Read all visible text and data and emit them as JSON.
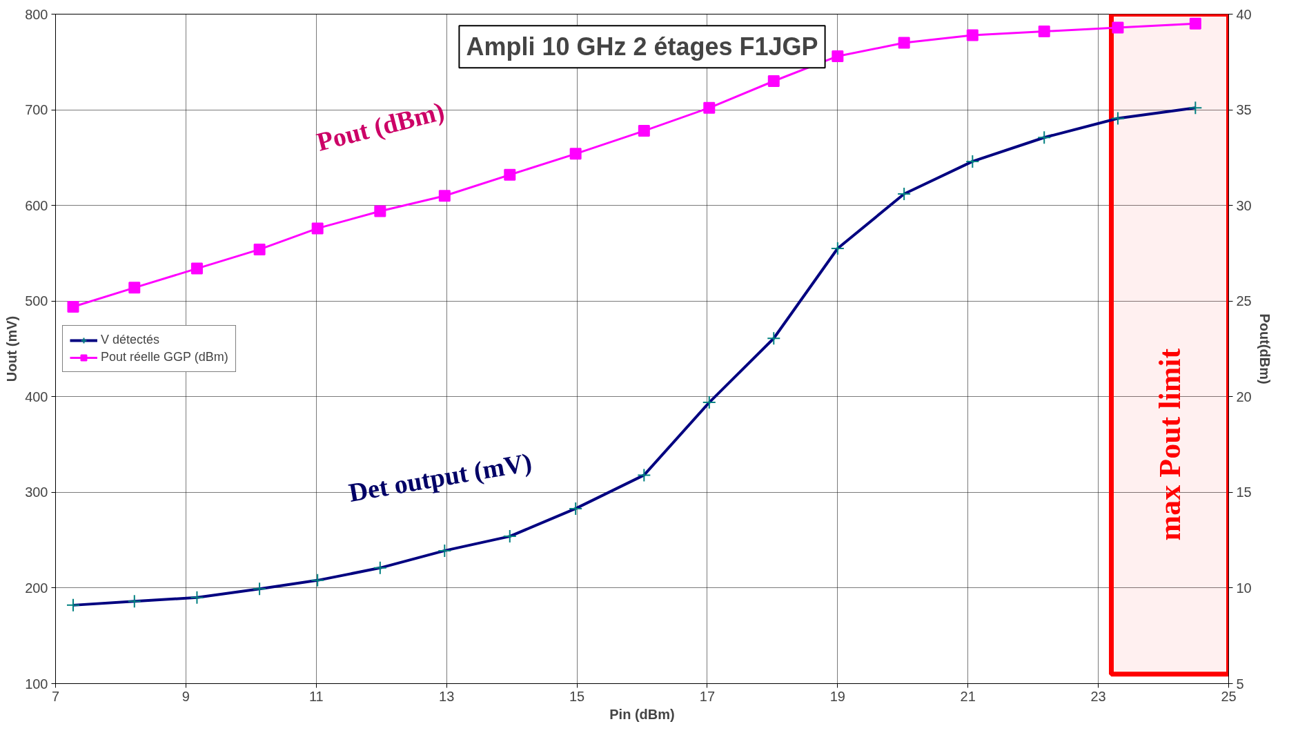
{
  "chart_data": {
    "type": "line",
    "title": "Ampli 10 GHz 2 étages F1JGP",
    "xlabel": "Pin (dBm)",
    "ylabel": "Uout (mV)",
    "y2label": "Pout(dBm)",
    "xlim": [
      7,
      25
    ],
    "xticks": [
      7,
      9,
      11,
      13,
      15,
      17,
      19,
      21,
      23,
      25
    ],
    "ylim": [
      100,
      800
    ],
    "yticks": [
      100,
      200,
      300,
      400,
      500,
      600,
      700,
      800
    ],
    "y2lim": [
      5,
      40
    ],
    "y2ticks": [
      5,
      10,
      15,
      20,
      25,
      30,
      35,
      40
    ],
    "grid": true,
    "legend": "left",
    "series": [
      {
        "name": "V détectés",
        "color": "#000080",
        "marker": "cross",
        "x": [
          7.27,
          8.21,
          9.17,
          10.13,
          11.02,
          11.98,
          12.97,
          13.97,
          14.98,
          16.03,
          17.03,
          18.02,
          19.0,
          20.02,
          21.07,
          22.17,
          23.3,
          24.49
        ],
        "values": [
          182,
          186,
          190,
          199,
          208,
          221,
          239,
          254,
          283,
          318,
          394,
          461,
          555,
          612,
          646,
          671,
          691,
          702
        ]
      },
      {
        "name": "Pout réelle GGP (dBm)",
        "color": "#ff00ff",
        "marker": "square",
        "axis": "y2",
        "x": [
          7.27,
          8.21,
          9.17,
          10.13,
          11.02,
          11.98,
          12.97,
          13.97,
          14.98,
          16.03,
          17.03,
          18.02,
          19.0,
          20.02,
          21.07,
          22.17,
          23.3,
          24.49
        ],
        "values": [
          24.7,
          25.7,
          26.7,
          27.7,
          28.8,
          29.7,
          30.5,
          31.6,
          32.7,
          33.9,
          35.1,
          36.5,
          37.8,
          38.5,
          38.9,
          39.1,
          39.3,
          39.5
        ]
      }
    ],
    "bands": [
      {
        "axis": "x",
        "from": 23.2,
        "to": 25,
        "label": "max Pout limit",
        "color": "#ff0000"
      }
    ],
    "annotations": [
      "Pout (dBm)",
      "Det output (mV)"
    ]
  }
}
